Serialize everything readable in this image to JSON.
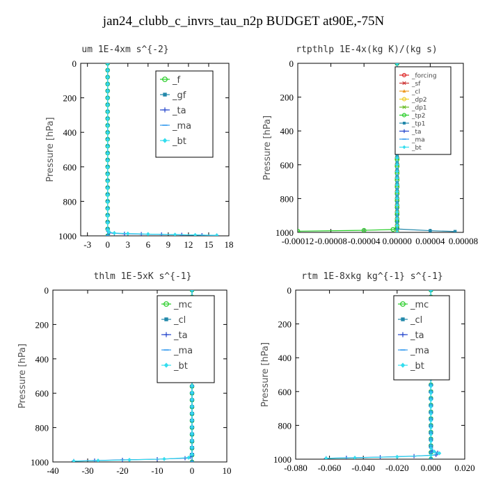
{
  "page_title": "jan24_clubb_c_invrs_tau_n2p  BUDGET at90E,-75N",
  "chart_data": [
    {
      "type": "line",
      "title": "um  1E-4xm s^{-2}",
      "ylabel": "Pressure [hPa]",
      "xlim": [
        -4,
        18
      ],
      "ylim": [
        1000,
        0
      ],
      "xticks": [
        "-3",
        "0",
        "3",
        "6",
        "9",
        "12",
        "15",
        "18"
      ],
      "xtick_values": [
        -3,
        0,
        3,
        6,
        9,
        12,
        15,
        18
      ],
      "yticks": [
        "0",
        "200",
        "400",
        "600",
        "800",
        "1000"
      ],
      "ytick_values": [
        0,
        200,
        400,
        600,
        800,
        1000
      ],
      "legend_position": "top-right",
      "series": [
        {
          "name": "_f",
          "color": "#22cc22",
          "marker": "circle",
          "x": [
            0,
            0
          ],
          "y": [
            0,
            1000
          ]
        },
        {
          "name": "_gf",
          "color": "#2288aa",
          "marker": "square",
          "x": [
            0,
            0
          ],
          "y": [
            0,
            1000
          ]
        },
        {
          "name": "_ta",
          "color": "#2244cc",
          "marker": "plus",
          "x": [
            0,
            0,
            0.1,
            0.3,
            1.0,
            2.5,
            5.0,
            8.0,
            11.0,
            14.0,
            16.2
          ],
          "y": [
            0,
            960,
            975,
            982,
            985,
            988,
            990,
            992,
            994,
            996,
            998
          ]
        },
        {
          "name": "_ma",
          "color": "#3399ee",
          "marker": "dash",
          "x": [
            0,
            0
          ],
          "y": [
            0,
            1000
          ]
        },
        {
          "name": "_bt",
          "color": "#33ddee",
          "marker": "diamond",
          "x": [
            0,
            0,
            0.2,
            1.0,
            3.0,
            6.0,
            10.0,
            13.0,
            16.2
          ],
          "y": [
            0,
            965,
            978,
            984,
            987,
            990,
            993,
            995,
            997
          ]
        }
      ]
    },
    {
      "type": "line",
      "title": "rtpthlp  1E-4x(kg K)/(kg s)",
      "ylabel": "Pressure [hPa]",
      "xlim": [
        -0.00012,
        8e-05
      ],
      "ylim": [
        1000,
        0
      ],
      "xticks": [
        "-0.00012",
        "-0.00008",
        "-0.00004",
        "0.00000",
        "0.00004",
        "0.00008"
      ],
      "xtick_values": [
        -0.00012,
        -8e-05,
        -4e-05,
        0,
        4e-05,
        8e-05
      ],
      "yticks": [
        "0",
        "200",
        "400",
        "600",
        "800",
        "1000"
      ],
      "ytick_values": [
        0,
        200,
        400,
        600,
        800,
        1000
      ],
      "legend_position": "top-right",
      "series": [
        {
          "name": "_forcing",
          "color": "#dd2222",
          "marker": "circle",
          "x": [
            0,
            0
          ],
          "y": [
            0,
            1000
          ]
        },
        {
          "name": "_sf",
          "color": "#cc3333",
          "marker": "x",
          "x": [
            0,
            0
          ],
          "y": [
            0,
            1000
          ]
        },
        {
          "name": "_cl",
          "color": "#ee9922",
          "marker": "triangle",
          "x": [
            0,
            0
          ],
          "y": [
            0,
            1000
          ]
        },
        {
          "name": "_dp2",
          "color": "#eecc22",
          "marker": "circle",
          "x": [
            0,
            0
          ],
          "y": [
            0,
            1000
          ]
        },
        {
          "name": "_dp1",
          "color": "#66bb22",
          "marker": "x",
          "x": [
            0,
            0
          ],
          "y": [
            0,
            1000
          ]
        },
        {
          "name": "_tp2",
          "color": "#22cc22",
          "marker": "circle",
          "x": [
            0,
            0,
            -5e-06,
            -4e-05,
            -0.00012
          ],
          "y": [
            0,
            975,
            983,
            988,
            993
          ]
        },
        {
          "name": "_tp1",
          "color": "#2288aa",
          "marker": "square",
          "x": [
            0,
            0,
            4e-05,
            7e-05
          ],
          "y": [
            0,
            980,
            990,
            995
          ]
        },
        {
          "name": "_ta",
          "color": "#2244cc",
          "marker": "plus",
          "x": [
            0,
            0
          ],
          "y": [
            0,
            1000
          ]
        },
        {
          "name": "_ma",
          "color": "#3399ee",
          "marker": "dash",
          "x": [
            0,
            0
          ],
          "y": [
            0,
            1000
          ]
        },
        {
          "name": "_bt",
          "color": "#33ddee",
          "marker": "diamond",
          "x": [
            0,
            0
          ],
          "y": [
            0,
            1000
          ]
        }
      ]
    },
    {
      "type": "line",
      "title": "thlm  1E-5xK s^{-1}",
      "ylabel": "Pressure [hPa]",
      "xlim": [
        -40,
        10
      ],
      "ylim": [
        1000,
        0
      ],
      "xticks": [
        "-40",
        "-30",
        "-20",
        "-10",
        "0",
        "10"
      ],
      "xtick_values": [
        -40,
        -30,
        -20,
        -10,
        0,
        10
      ],
      "yticks": [
        "0",
        "200",
        "400",
        "600",
        "800",
        "1000"
      ],
      "ytick_values": [
        0,
        200,
        400,
        600,
        800,
        1000
      ],
      "legend_position": "top-right",
      "series": [
        {
          "name": "_mc",
          "color": "#22cc22",
          "marker": "circle",
          "x": [
            0,
            0
          ],
          "y": [
            0,
            1000
          ]
        },
        {
          "name": "_cl",
          "color": "#2288aa",
          "marker": "square",
          "x": [
            0,
            0
          ],
          "y": [
            0,
            1000
          ]
        },
        {
          "name": "_ta",
          "color": "#2244cc",
          "marker": "plus",
          "x": [
            0,
            0,
            -0.5,
            -2,
            -10,
            -20,
            -28,
            -34
          ],
          "y": [
            0,
            950,
            970,
            978,
            984,
            988,
            992,
            995
          ]
        },
        {
          "name": "_ma",
          "color": "#3399ee",
          "marker": "dash",
          "x": [
            0,
            0
          ],
          "y": [
            0,
            1000
          ]
        },
        {
          "name": "_bt",
          "color": "#33ddee",
          "marker": "diamond",
          "x": [
            0,
            0,
            -1,
            -8,
            -18,
            -27,
            -34
          ],
          "y": [
            0,
            955,
            975,
            983,
            988,
            992,
            995
          ]
        }
      ]
    },
    {
      "type": "line",
      "title": "rtm  1E-8xkg kg^{-1} s^{-1}",
      "ylabel": "Pressure [hPa]",
      "xlim": [
        -0.08,
        0.02
      ],
      "ylim": [
        1000,
        0
      ],
      "xticks": [
        "-0.080",
        "-0.060",
        "-0.040",
        "-0.020",
        "0.000",
        "0.020"
      ],
      "xtick_values": [
        -0.08,
        -0.06,
        -0.04,
        -0.02,
        0,
        0.02
      ],
      "yticks": [
        "0",
        "200",
        "400",
        "600",
        "800",
        "1000"
      ],
      "ytick_values": [
        0,
        200,
        400,
        600,
        800,
        1000
      ],
      "legend_position": "top-right",
      "series": [
        {
          "name": "_mc",
          "color": "#22cc22",
          "marker": "circle",
          "x": [
            0,
            0
          ],
          "y": [
            0,
            1000
          ]
        },
        {
          "name": "_cl",
          "color": "#2288aa",
          "marker": "square",
          "x": [
            0,
            0
          ],
          "y": [
            0,
            1000
          ]
        },
        {
          "name": "_ta",
          "color": "#2244cc",
          "marker": "plus",
          "x": [
            0,
            0,
            0.001,
            0.004,
            0.003,
            -0.01,
            -0.03,
            -0.05,
            -0.062
          ],
          "y": [
            0,
            930,
            950,
            962,
            975,
            982,
            988,
            992,
            995
          ]
        },
        {
          "name": "_ma",
          "color": "#3399ee",
          "marker": "dash",
          "x": [
            0,
            0
          ],
          "y": [
            0,
            1000
          ]
        },
        {
          "name": "_bt",
          "color": "#33ddee",
          "marker": "diamond",
          "x": [
            0,
            0,
            0.002,
            0.005,
            0.0,
            -0.02,
            -0.045,
            -0.062
          ],
          "y": [
            0,
            935,
            955,
            965,
            978,
            986,
            992,
            995
          ]
        }
      ]
    }
  ]
}
